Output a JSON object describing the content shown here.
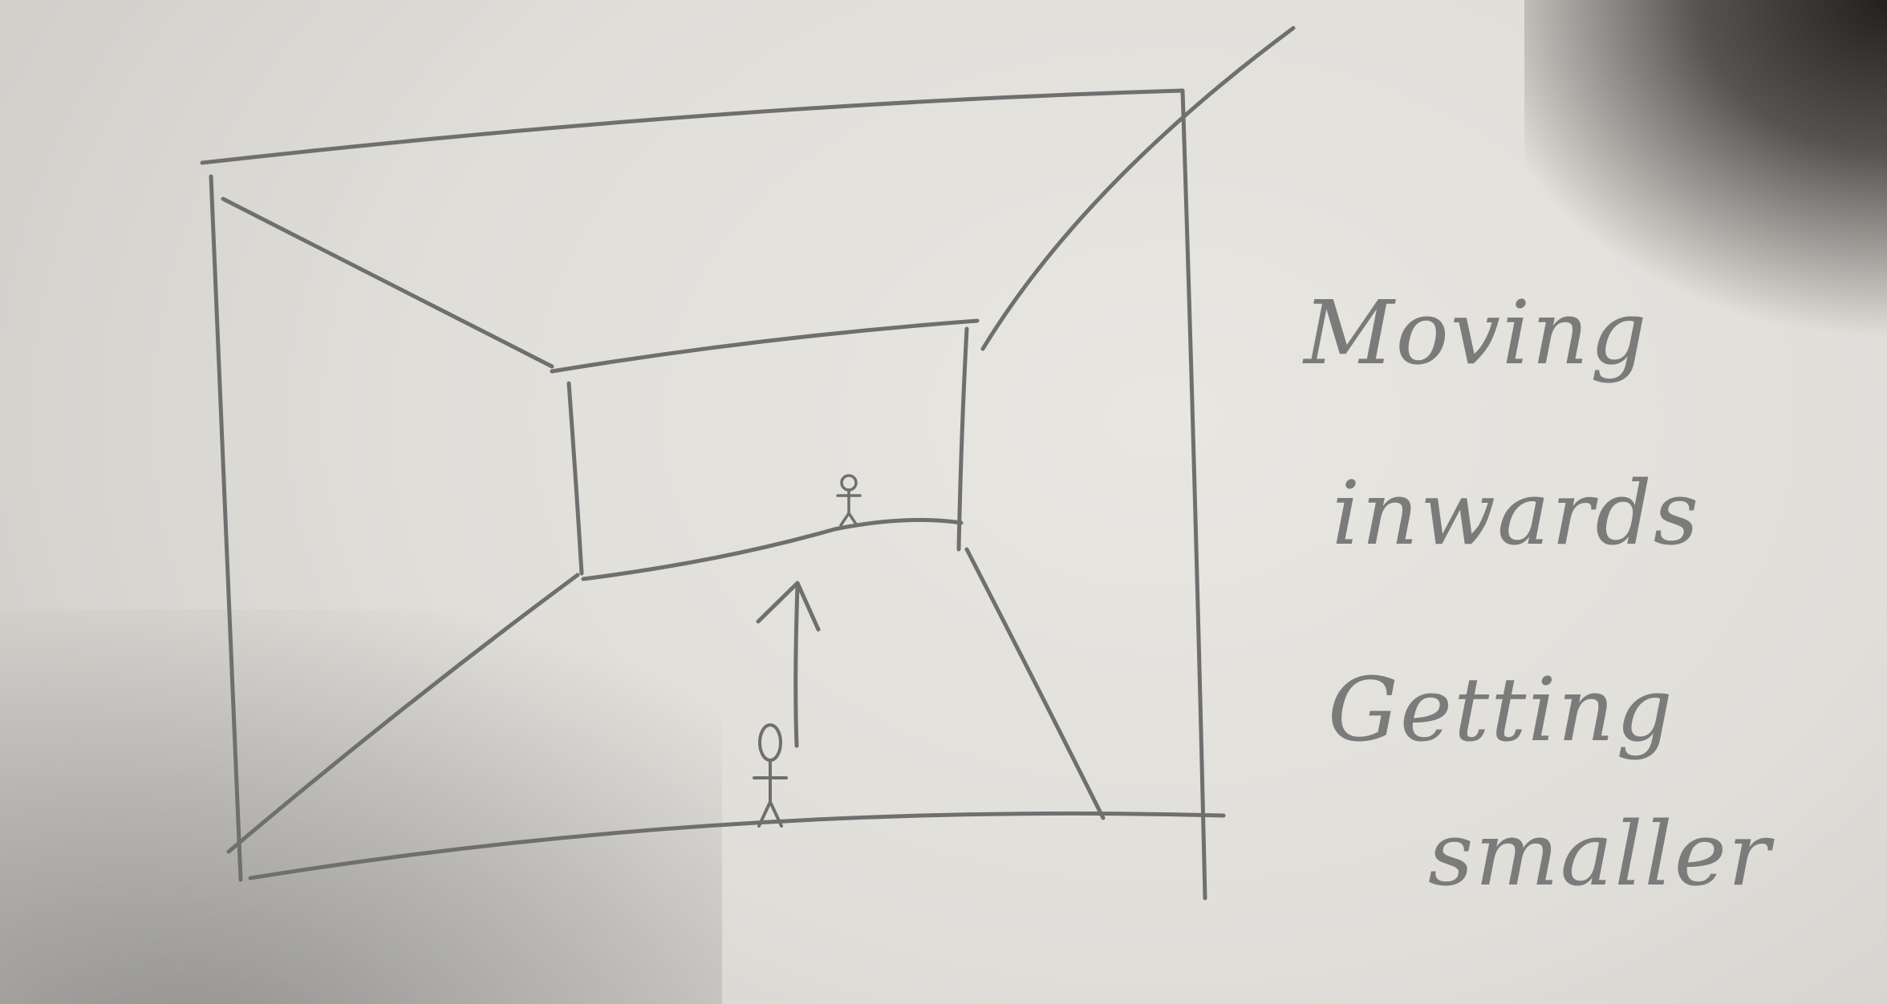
{
  "note": {
    "lines": [
      "Moving",
      "inwards",
      "Getting",
      "smaller"
    ]
  },
  "sketch": {
    "icons": [
      "outer-room-frame",
      "inner-room-frame",
      "perspective-lines",
      "stick-figure",
      "up-arrow"
    ]
  }
}
